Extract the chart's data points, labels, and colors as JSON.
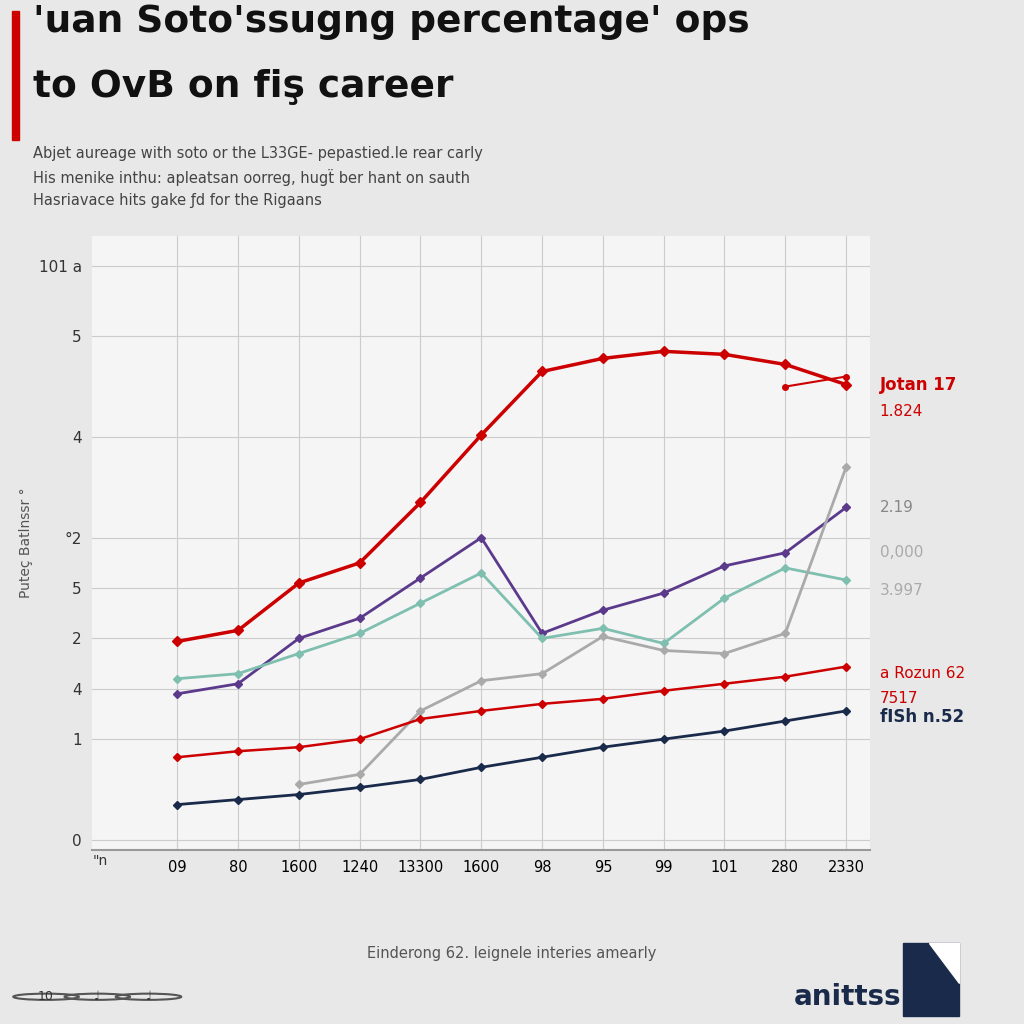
{
  "title_line1": "'uan Soto'ssugng percentage' ops",
  "title_line2": "to OvB on fiş career",
  "subtitle_lines": [
    "Abjet aureage with soto or the L33GE- pepastied.le rear carly",
    "His menike inthu: apleatsan oorreg, hugẗ ber hant on sauth",
    "Hasriavace hits gake ƒd for the Rigaans"
  ],
  "source_note": "Einderong 62. leignele interies amearly",
  "x_labels": [
    "",
    "09",
    "80",
    "1600",
    "1240",
    "13300",
    "1600",
    "98",
    "95",
    "99",
    "101",
    "280",
    "2330"
  ],
  "series": [
    {
      "name": "Jotan 17",
      "label_line2": null,
      "color": "#cc0000",
      "marker": "D",
      "markersize": 5,
      "linewidth": 2.5,
      "bold_label": true,
      "label_color": "#cc0000",
      "values": [
        null,
        1.97,
        2.08,
        2.55,
        2.75,
        3.35,
        4.02,
        4.65,
        4.78,
        4.85,
        4.82,
        4.72,
        4.52
      ]
    },
    {
      "name": "1.824",
      "label_line2": null,
      "color": "#cc0000",
      "marker": "o",
      "markersize": 4,
      "linewidth": 1.5,
      "bold_label": false,
      "label_color": "#cc0000",
      "values": [
        null,
        null,
        null,
        null,
        null,
        null,
        null,
        null,
        null,
        null,
        null,
        4.5,
        4.6
      ]
    },
    {
      "name": "2.19",
      "label_line2": null,
      "color": "#5b3a8c",
      "marker": "D",
      "markersize": 4,
      "linewidth": 2.0,
      "bold_label": false,
      "label_color": "#888888",
      "values": [
        null,
        1.45,
        1.55,
        2.0,
        2.2,
        2.6,
        3.0,
        2.05,
        2.28,
        2.45,
        2.72,
        2.85,
        3.3
      ]
    },
    {
      "name": "0,000",
      "label_line2": null,
      "color": "#7fbfaf",
      "marker": "D",
      "markersize": 4,
      "linewidth": 2.0,
      "bold_label": false,
      "label_color": "#888888",
      "values": [
        null,
        1.6,
        1.65,
        1.85,
        2.05,
        2.35,
        2.65,
        2.0,
        2.1,
        1.95,
        2.4,
        2.7,
        2.58
      ]
    },
    {
      "name": "3.997",
      "label_line2": null,
      "color": "#aaaaaa",
      "marker": "D",
      "markersize": 4,
      "linewidth": 2.0,
      "bold_label": false,
      "label_color": "#aaaaaa",
      "values": [
        null,
        null,
        null,
        0.55,
        0.65,
        1.28,
        1.58,
        1.65,
        2.02,
        1.88,
        1.85,
        2.05,
        3.7
      ]
    },
    {
      "name": "a Rozun 62",
      "label_line2": "7517",
      "color": "#cc0000",
      "marker": "D",
      "markersize": 4,
      "linewidth": 1.8,
      "bold_label": false,
      "label_color": "#cc0000",
      "values": [
        null,
        0.82,
        0.88,
        0.92,
        1.0,
        1.2,
        1.28,
        1.35,
        1.4,
        1.48,
        1.55,
        1.62,
        1.72
      ]
    },
    {
      "name": "fISh n.52",
      "label_line2": null,
      "color": "#1a2a4a",
      "marker": "D",
      "markersize": 4,
      "linewidth": 2.0,
      "bold_label": true,
      "label_color": "#1a2a4a",
      "values": [
        null,
        0.35,
        0.4,
        0.45,
        0.52,
        0.6,
        0.72,
        0.82,
        0.92,
        1.0,
        1.08,
        1.18,
        1.28
      ]
    }
  ],
  "ytick_labels": [
    "101 a",
    "5",
    "4",
    "°2",
    "5",
    "2",
    "4",
    "1",
    "0"
  ],
  "ytick_positions": [
    5.7,
    5.0,
    4.0,
    3.0,
    2.5,
    2.0,
    1.5,
    1.0,
    0.0
  ],
  "ylim": [
    -0.1,
    6.0
  ],
  "background_color": "#e8e8e8",
  "plot_background": "#f5f5f5",
  "grid_color": "#cccccc",
  "accent_color": "#cc0000",
  "brand_text": "anittss"
}
